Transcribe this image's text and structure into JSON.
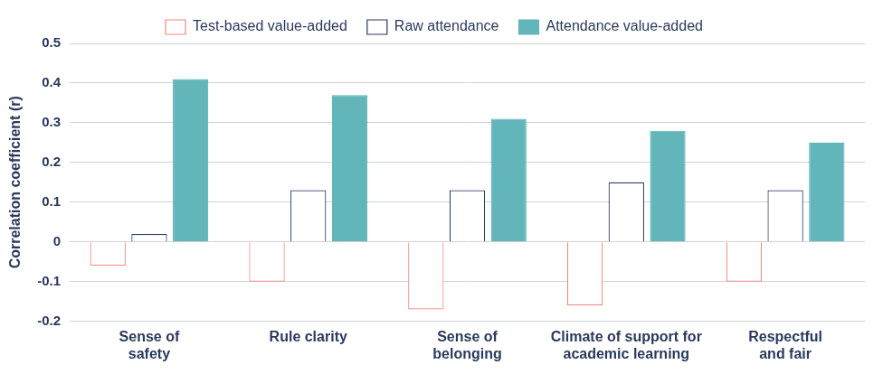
{
  "chart_data": {
    "type": "bar",
    "categories": [
      "Sense of\nsafety",
      "Rule clarity",
      "Sense of\nbelonging",
      "Climate of support for\nacademic learning",
      "Respectful\nand fair"
    ],
    "series": [
      {
        "name": "Test-based value-added",
        "color": "#f0887c",
        "values": [
          -0.06,
          -0.1,
          -0.17,
          -0.16,
          -0.1
        ]
      },
      {
        "name": "Raw attendance",
        "color": "#2b3a5c",
        "values": [
          0.02,
          0.13,
          0.13,
          0.15,
          0.13
        ]
      },
      {
        "name": "Attendance value-added",
        "color": "#62b5b8",
        "values": [
          0.41,
          0.37,
          0.31,
          0.28,
          0.25
        ]
      }
    ],
    "ylabel": "Correlation coefficient (r)",
    "ylim": [
      -0.2,
      0.5
    ],
    "yticks": [
      -0.2,
      -0.1,
      0,
      0.1,
      0.2,
      0.3,
      0.4,
      0.5
    ],
    "grid": true,
    "legend": "top"
  }
}
